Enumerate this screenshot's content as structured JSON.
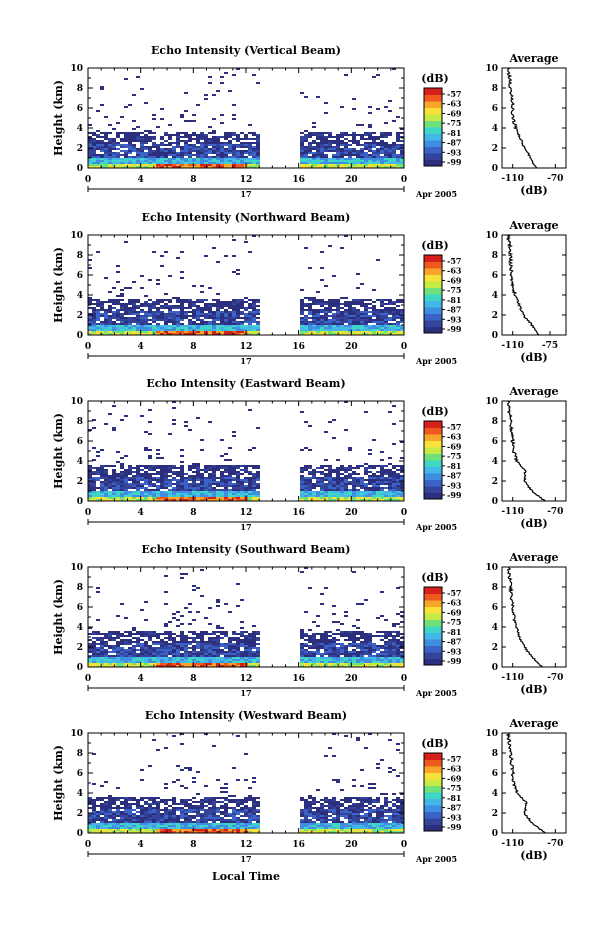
{
  "figure": {
    "xlabel": "Local Time",
    "date_label": "Apr 2005",
    "day_label": "17",
    "ylabel": "Height (km)",
    "colorbar_unit": "(dB)",
    "colorbar_ticks": [
      "-57",
      "-63",
      "-69",
      "-75",
      "-81",
      "-87",
      "-93",
      "-99"
    ],
    "average_title": "Average",
    "average_xlabel": "(dB)",
    "x_tick_labels": [
      "0",
      "4",
      "8",
      "12",
      "16",
      "20",
      "0"
    ],
    "y_tick_labels": [
      "0",
      "2",
      "4",
      "6",
      "8",
      "10"
    ],
    "avg_tick_labels_a": [
      "-110",
      "-70"
    ],
    "avg_tick_labels_b": [
      "-110",
      "-75"
    ]
  },
  "colors": {
    "scale": [
      "#2b2f7e",
      "#33449a",
      "#3b62c7",
      "#3f8ee0",
      "#43b7e8",
      "#3fd6c8",
      "#6fe07a",
      "#c8ea45",
      "#f8e23a",
      "#f8a52b",
      "#ee5a1e",
      "#d8201a"
    ]
  },
  "chart_data": [
    {
      "type": "heatmap",
      "title": "Echo Intensity (Vertical Beam)",
      "xlabel": "Local Time",
      "ylabel": "Height (km)",
      "xlim": [
        0,
        24
      ],
      "ylim": [
        0,
        10
      ],
      "clim": [
        -99,
        -57
      ],
      "data_gap_hours": [
        12.9,
        15.9
      ],
      "profile": [
        [
          0,
          -88
        ],
        [
          1,
          -93
        ],
        [
          2,
          -99
        ],
        [
          3,
          -103
        ],
        [
          4,
          -107
        ],
        [
          5,
          -110
        ],
        [
          6,
          -110
        ],
        [
          7,
          -111
        ],
        [
          8,
          -112
        ],
        [
          9,
          -113
        ],
        [
          10,
          -114
        ]
      ],
      "average_xlim": [
        -120,
        -60
      ],
      "average_ticks": [
        -110,
        -70
      ]
    },
    {
      "type": "heatmap",
      "title": "Echo Intensity (Northward Beam)",
      "xlabel": "Local Time",
      "ylabel": "Height (km)",
      "xlim": [
        0,
        24
      ],
      "ylim": [
        0,
        10
      ],
      "clim": [
        -99,
        -57
      ],
      "data_gap_hours": [
        12.9,
        15.9
      ],
      "profile": [
        [
          0,
          -85
        ],
        [
          1,
          -92
        ],
        [
          2,
          -100
        ],
        [
          3,
          -104
        ],
        [
          4,
          -108
        ],
        [
          5,
          -110
        ],
        [
          6,
          -111
        ],
        [
          7,
          -112
        ],
        [
          8,
          -112
        ],
        [
          9,
          -113
        ],
        [
          10,
          -114
        ]
      ],
      "average_xlim": [
        -120,
        -60
      ],
      "average_ticks": [
        -110,
        -75
      ]
    },
    {
      "type": "heatmap",
      "title": "Echo Intensity (Eastward Beam)",
      "xlabel": "Local Time",
      "ylabel": "Height (km)",
      "xlim": [
        0,
        24
      ],
      "ylim": [
        0,
        10
      ],
      "clim": [
        -99,
        -57
      ],
      "data_gap_hours": [
        12.9,
        15.9
      ],
      "profile": [
        [
          0,
          -80
        ],
        [
          1,
          -92
        ],
        [
          2,
          -99
        ],
        [
          3,
          -98
        ],
        [
          4,
          -106
        ],
        [
          5,
          -109
        ],
        [
          6,
          -110
        ],
        [
          7,
          -111
        ],
        [
          8,
          -112
        ],
        [
          9,
          -113
        ],
        [
          10,
          -114
        ]
      ],
      "average_xlim": [
        -120,
        -60
      ],
      "average_ticks": [
        -110,
        -70
      ]
    },
    {
      "type": "heatmap",
      "title": "Echo Intensity (Southward Beam)",
      "xlabel": "Local Time",
      "ylabel": "Height (km)",
      "xlim": [
        0,
        24
      ],
      "ylim": [
        0,
        10
      ],
      "clim": [
        -99,
        -57
      ],
      "data_gap_hours": [
        12.9,
        15.9
      ],
      "profile": [
        [
          0,
          -82
        ],
        [
          1,
          -92
        ],
        [
          2,
          -99
        ],
        [
          3,
          -104
        ],
        [
          4,
          -106
        ],
        [
          5,
          -109
        ],
        [
          6,
          -110
        ],
        [
          7,
          -111
        ],
        [
          8,
          -112
        ],
        [
          9,
          -113
        ],
        [
          10,
          -114
        ]
      ],
      "average_xlim": [
        -120,
        -60
      ],
      "average_ticks": [
        -110,
        -70
      ]
    },
    {
      "type": "heatmap",
      "title": "Echo Intensity (Westward Beam)",
      "xlabel": "Local Time",
      "ylabel": "Height (km)",
      "xlim": [
        0,
        24
      ],
      "ylim": [
        0,
        10
      ],
      "clim": [
        -99,
        -57
      ],
      "data_gap_hours": [
        12.9,
        15.9
      ],
      "profile": [
        [
          0,
          -80
        ],
        [
          1,
          -92
        ],
        [
          2,
          -99
        ],
        [
          3,
          -97
        ],
        [
          4,
          -106
        ],
        [
          5,
          -109
        ],
        [
          6,
          -110
        ],
        [
          7,
          -111
        ],
        [
          8,
          -112
        ],
        [
          9,
          -113
        ],
        [
          10,
          -114
        ]
      ],
      "average_xlim": [
        -120,
        -60
      ],
      "average_ticks": [
        -110,
        -70
      ]
    }
  ]
}
